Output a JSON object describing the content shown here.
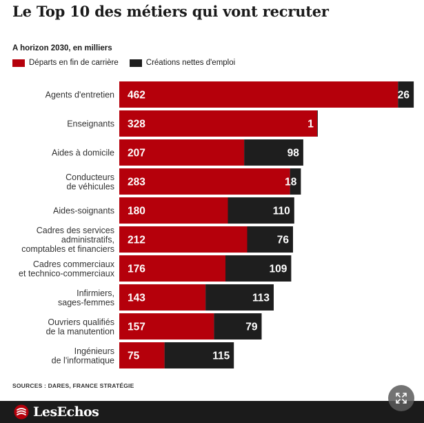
{
  "header": {
    "title": "Le Top 10 des métiers qui vont recruter",
    "subtitle": "A horizon 2030, en milliers"
  },
  "legend": {
    "items": [
      {
        "label": "Départs en fin de carrière",
        "color": "#b5000b"
      },
      {
        "label": "Créations nettes d'emploi",
        "color": "#1e1e1e"
      }
    ]
  },
  "chart_data": {
    "type": "bar",
    "orientation": "horizontal",
    "stacked": true,
    "categories": [
      [
        "Agents d'entretien"
      ],
      [
        "Enseignants"
      ],
      [
        "Aides à domicile"
      ],
      [
        "Conducteurs",
        "de véhicules"
      ],
      [
        "Aides-soignants"
      ],
      [
        "Cadres des services",
        "administratifs,",
        "comptables et financiers"
      ],
      [
        "Cadres commerciaux",
        "et technico-commerciaux"
      ],
      [
        "Infirmiers,",
        "sages-femmes"
      ],
      [
        "Ouvriers qualifiés",
        "de la manutention"
      ],
      [
        "Ingénieurs",
        "de l'informatique"
      ]
    ],
    "series": [
      {
        "name": "Départs en fin de carrière",
        "color": "#b5000b",
        "values": [
          462,
          328,
          207,
          283,
          180,
          212,
          176,
          143,
          157,
          75
        ]
      },
      {
        "name": "Créations nettes d'emploi",
        "color": "#1e1e1e",
        "values": [
          26,
          1,
          98,
          18,
          110,
          76,
          109,
          113,
          79,
          115
        ]
      }
    ],
    "xlim": [
      0,
      488
    ],
    "grid": false,
    "legend_position": "top-left"
  },
  "footer": {
    "sources": "SOURCES : DARES, FRANCE STRATÉGIE",
    "logo_text": "LesEchos",
    "logo_color": "#b5000b"
  },
  "controls": {
    "expand_icon": "expand-arrows-icon"
  }
}
